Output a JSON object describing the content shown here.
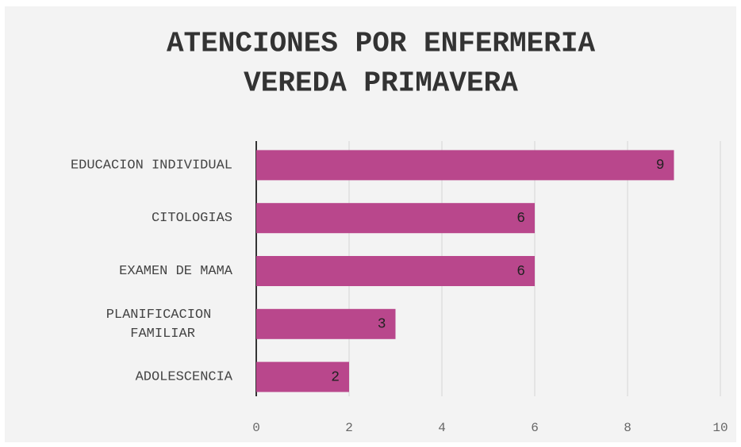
{
  "chart_data": {
    "type": "barh",
    "title": [
      "ATENCIONES POR ENFERMERIA",
      "VEREDA PRIMAVERA"
    ],
    "categories": [
      "EDUCACION INDIVIDUAL",
      "CITOLOGIAS",
      "EXAMEN DE MAMA",
      "PLANIFICACION FAMILIAR",
      "ADOLESCENCIA"
    ],
    "values": [
      9,
      6,
      6,
      3,
      2
    ],
    "color": "#b9478c",
    "xlim": [
      0,
      10
    ],
    "xticks": [
      0,
      2,
      4,
      6,
      8,
      10
    ],
    "grid": true
  }
}
